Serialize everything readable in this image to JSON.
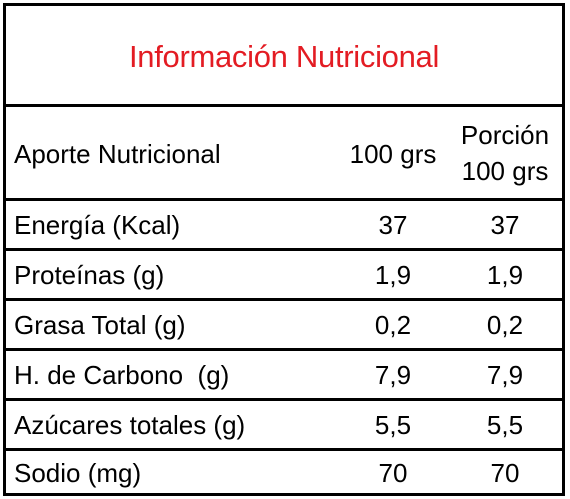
{
  "colors": {
    "title": "#e31c23",
    "text": "#000000",
    "border": "#000000",
    "background": "#ffffff"
  },
  "title": "Información Nutricional",
  "header": {
    "label": "Aporte Nutricional",
    "col_100": "100 grs",
    "col_portion_line1": "Porción",
    "col_portion_line2": "100 grs"
  },
  "rows": [
    {
      "label": "Energía (Kcal)",
      "per_100": "37",
      "per_portion": "37"
    },
    {
      "label": "Proteínas (g)",
      "per_100": "1,9",
      "per_portion": "1,9"
    },
    {
      "label": "Grasa Total (g)",
      "per_100": "0,2",
      "per_portion": "0,2"
    },
    {
      "label": "H. de Carbono  (g)",
      "per_100": "7,9",
      "per_portion": "7,9"
    },
    {
      "label": "Azúcares totales (g)",
      "per_100": "5,5",
      "per_portion": "5,5"
    },
    {
      "label": "Sodio (mg)",
      "per_100": "70",
      "per_portion": "70"
    }
  ]
}
